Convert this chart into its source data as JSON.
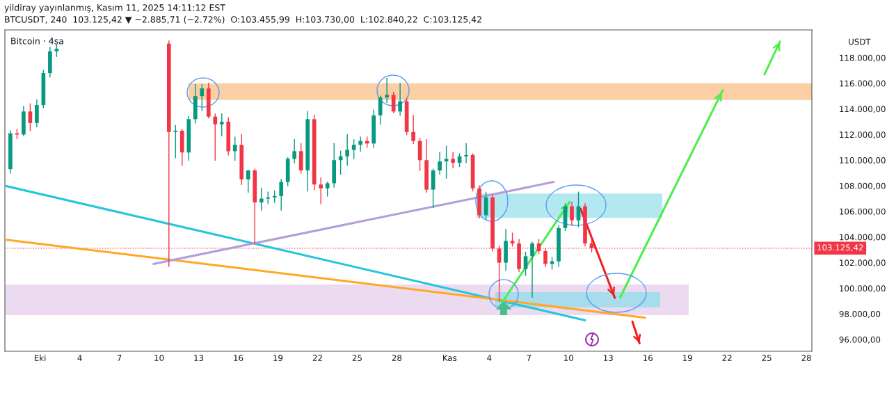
{
  "chart_data": {
    "type": "candlestick",
    "title": "yildiray yayınlanmış, Kasım 11, 2025 14:11:12 EST",
    "subtitle": "BTCUSDT, 240  103.125,42 ▼ −2.885,71 (−2.72%)  O:103.455,99  H:103.730,00  L:102.840,22  C:103.125,42",
    "ylabel": "USDT",
    "annotations": [
      "Bitcoin · 4sa"
    ],
    "x": [
      "2025-09-28T18:00",
      "2025-09-29T06:00",
      "2025-09-29T18:00",
      "2025-09-30T06:00",
      "2025-09-30T18:00",
      "2025-10-01T06:00",
      "2025-10-01T18:00",
      "2025-10-02T06:00",
      "2025-10-10T18:00",
      "2025-10-11T06:00",
      "2025-10-11T18:00",
      "2025-10-12T06:00",
      "2025-10-12T18:00",
      "2025-10-13T06:00",
      "2025-10-13T18:00",
      "2025-10-14T06:00",
      "2025-10-14T18:00",
      "2025-10-15T06:00",
      "2025-10-15T18:00",
      "2025-10-16T06:00",
      "2025-10-16T18:00",
      "2025-10-17T06:00",
      "2025-10-17T18:00",
      "2025-10-18T06:00",
      "2025-10-18T18:00",
      "2025-10-19T06:00",
      "2025-10-19T18:00",
      "2025-10-20T06:00",
      "2025-10-20T18:00",
      "2025-10-21T06:00",
      "2025-10-21T18:00",
      "2025-10-22T06:00",
      "2025-10-22T18:00",
      "2025-10-23T06:00",
      "2025-10-23T18:00",
      "2025-10-24T06:00",
      "2025-10-24T18:00",
      "2025-10-25T06:00",
      "2025-10-25T18:00",
      "2025-10-26T06:00",
      "2025-10-26T18:00",
      "2025-10-27T06:00",
      "2025-10-27T18:00",
      "2025-10-28T06:00",
      "2025-10-28T18:00",
      "2025-10-29T06:00",
      "2025-10-29T18:00",
      "2025-10-30T06:00",
      "2025-10-30T18:00",
      "2025-10-31T06:00",
      "2025-10-31T18:00",
      "2025-11-01T06:00",
      "2025-11-01T18:00",
      "2025-11-02T06:00",
      "2025-11-02T18:00",
      "2025-11-03T06:00",
      "2025-11-03T18:00",
      "2025-11-04T06:00",
      "2025-11-04T18:00",
      "2025-11-05T06:00",
      "2025-11-05T18:00",
      "2025-11-06T06:00",
      "2025-11-06T18:00",
      "2025-11-07T06:00",
      "2025-11-07T18:00",
      "2025-11-08T06:00",
      "2025-11-08T18:00",
      "2025-11-09T06:00",
      "2025-11-09T18:00",
      "2025-11-10T06:00",
      "2025-11-10T18:00",
      "2025-11-11T06:00",
      "2025-11-11T18:00"
    ],
    "ohlc": [
      [
        109300,
        112300,
        109000,
        112100
      ],
      [
        112100,
        112400,
        111700,
        112000
      ],
      [
        112000,
        114200,
        111900,
        113800
      ],
      [
        113800,
        114400,
        112300,
        112900
      ],
      [
        112900,
        114700,
        112600,
        114300
      ],
      [
        114300,
        117000,
        114100,
        116800
      ],
      [
        116800,
        118800,
        116500,
        118500
      ],
      [
        118500,
        119000,
        118100,
        118700
      ],
      [
        119100,
        119300,
        101700,
        112200
      ],
      [
        112200,
        112700,
        110200,
        112300
      ],
      [
        112300,
        112400,
        109600,
        110600
      ],
      [
        110600,
        113400,
        110000,
        113200
      ],
      [
        113200,
        115900,
        112900,
        115000
      ],
      [
        115000,
        115900,
        113900,
        115600
      ],
      [
        115600,
        116000,
        113300,
        113400
      ],
      [
        113400,
        113600,
        110000,
        112800
      ],
      [
        112800,
        113600,
        111900,
        113000
      ],
      [
        113000,
        113300,
        110400,
        110700
      ],
      [
        110700,
        111800,
        110000,
        111200
      ],
      [
        111200,
        112000,
        108100,
        108500
      ],
      [
        108500,
        109200,
        107500,
        109200
      ],
      [
        109200,
        109300,
        103500,
        106700
      ],
      [
        106700,
        107800,
        106100,
        107000
      ],
      [
        107000,
        107500,
        106600,
        107100
      ],
      [
        107100,
        107600,
        106700,
        107200
      ],
      [
        107200,
        108500,
        106100,
        108300
      ],
      [
        108300,
        110200,
        108000,
        110100
      ],
      [
        110100,
        111600,
        109800,
        110700
      ],
      [
        110700,
        111300,
        109000,
        109200
      ],
      [
        109200,
        113800,
        107600,
        113200
      ],
      [
        113200,
        113500,
        107700,
        108100
      ],
      [
        108100,
        108600,
        106600,
        107800
      ],
      [
        107800,
        108300,
        107200,
        108200
      ],
      [
        108200,
        111300,
        107900,
        110000
      ],
      [
        110000,
        110700,
        108900,
        110300
      ],
      [
        110300,
        112000,
        109600,
        110800
      ],
      [
        110800,
        111600,
        110100,
        111200
      ],
      [
        111200,
        111800,
        110700,
        111500
      ],
      [
        111500,
        111800,
        111000,
        111300
      ],
      [
        111300,
        113900,
        111000,
        113500
      ],
      [
        113500,
        115000,
        112800,
        114900
      ],
      [
        114900,
        116400,
        114500,
        115100
      ],
      [
        115100,
        115300,
        113700,
        113800
      ],
      [
        113800,
        116000,
        113500,
        114600
      ],
      [
        114600,
        114800,
        112000,
        112200
      ],
      [
        112200,
        113500,
        111300,
        111500
      ],
      [
        111500,
        111700,
        109200,
        110000
      ],
      [
        110000,
        111600,
        107500,
        107700
      ],
      [
        107700,
        109300,
        106300,
        109200
      ],
      [
        109200,
        110600,
        108900,
        109900
      ],
      [
        109900,
        111100,
        108600,
        110100
      ],
      [
        110100,
        110600,
        109400,
        109800
      ],
      [
        109800,
        110500,
        109500,
        110300
      ],
      [
        110300,
        111300,
        109800,
        110400
      ],
      [
        110400,
        110500,
        107600,
        107800
      ],
      [
        107800,
        108000,
        105500,
        105700
      ],
      [
        105700,
        107500,
        105400,
        107100
      ],
      [
        107100,
        107300,
        102900,
        103100
      ],
      [
        103100,
        103300,
        99000,
        102000
      ],
      [
        102000,
        104600,
        101400,
        103700
      ],
      [
        103700,
        104300,
        103300,
        103500
      ],
      [
        103500,
        103800,
        101300,
        101500
      ],
      [
        101500,
        102800,
        101000,
        102500
      ],
      [
        102500,
        103600,
        99300,
        103500
      ],
      [
        103500,
        103800,
        102700,
        102900
      ],
      [
        102900,
        103100,
        101700,
        101900
      ],
      [
        101900,
        102400,
        101500,
        102100
      ],
      [
        102100,
        104900,
        101700,
        104700
      ],
      [
        104700,
        106600,
        104500,
        106400
      ],
      [
        106400,
        106700,
        104900,
        105300
      ],
      [
        105300,
        107500,
        104800,
        106400
      ],
      [
        106400,
        106600,
        103300,
        103500
      ],
      [
        103500,
        103730,
        102840,
        103125
      ]
    ],
    "colors": [
      "#089981",
      "#f23645",
      "#089981",
      "#f23645",
      "#089981",
      "#089981",
      "#089981",
      "#089981",
      "#f23645",
      "#089981",
      "#f23645",
      "#089981",
      "#089981",
      "#089981",
      "#f23645",
      "#f23645",
      "#089981",
      "#f23645",
      "#089981",
      "#f23645",
      "#089981",
      "#f23645",
      "#089981",
      "#089981",
      "#089981",
      "#089981",
      "#089981",
      "#089981",
      "#f23645",
      "#089981",
      "#f23645",
      "#f23645",
      "#089981",
      "#089981",
      "#089981",
      "#089981",
      "#089981",
      "#089981",
      "#f23645",
      "#089981",
      "#089981",
      "#089981",
      "#f23645",
      "#089981",
      "#f23645",
      "#f23645",
      "#f23645",
      "#f23645",
      "#089981",
      "#089981",
      "#089981",
      "#f23645",
      "#089981",
      "#089981",
      "#f23645",
      "#f23645",
      "#089981",
      "#f23645",
      "#f23645",
      "#089981",
      "#f23645",
      "#f23645",
      "#089981",
      "#089981",
      "#f23645",
      "#f23645",
      "#089981",
      "#089981",
      "#089981",
      "#f23645",
      "#089981",
      "#f23645",
      "#f23645"
    ],
    "series": [
      {
        "type": "line",
        "color": "#26c6da",
        "x": [
          "2025-09-28T08:00",
          "2025-11-11T06:00"
        ],
        "values": [
          108000,
          97500
        ]
      },
      {
        "type": "line",
        "color": "#ffa726",
        "x": [
          "2025-09-28T08:00",
          "2025-11-15T19:00"
        ],
        "values": [
          103800,
          97700
        ]
      },
      {
        "type": "line",
        "color": "#b39ddb",
        "x": [
          "2025-10-09T14:00",
          "2025-11-08T21:00"
        ],
        "values": [
          101900,
          108300
        ]
      },
      {
        "type": "line",
        "color": "#4cee4c",
        "x": [
          "2025-11-05T01:00",
          "2025-11-10T02:00"
        ],
        "values": [
          99000,
          106750
        ]
      },
      {
        "type": "line",
        "color": "#f01e1e",
        "x": [
          "2025-11-10T22:00",
          "2025-11-13T12:00"
        ],
        "values": [
          106200,
          99250
        ]
      },
      {
        "type": "line",
        "color": "#4cee4c",
        "x": [
          "2025-11-13T22:00",
          "2025-11-21T16:00"
        ],
        "values": [
          99300,
          115450
        ]
      },
      {
        "type": "line",
        "color": "#4cee4c",
        "x": [
          "2025-11-24T20:00",
          "2025-11-26T00:00"
        ],
        "values": [
          116700,
          119250
        ]
      },
      {
        "type": "line",
        "color": "#f01e1e",
        "x": [
          "2025-11-14T20:00",
          "2025-11-15T09:00"
        ],
        "values": [
          97400,
          95700
        ]
      }
    ],
    "bands": [
      {
        "axis": "y",
        "from": 114700,
        "to": 116000,
        "color": "#f9cfa3"
      },
      {
        "axis": "y",
        "from": 97900,
        "to": 100300,
        "color": "#ecdaf0"
      },
      {
        "axis": "y",
        "from": 105500,
        "to": 107400,
        "color": "#b3e8f0"
      },
      {
        "axis": "y",
        "from": 98500,
        "to": 99700,
        "color": "#a6dcec"
      }
    ],
    "ref_lines": [
      {
        "axis": "y",
        "value": 103125.42,
        "label": "103.125,42",
        "color": "#f23645",
        "line_style": "dotted"
      }
    ],
    "xlim": [
      "2025-09-28T08:00",
      "2025-11-28T10:00"
    ],
    "xticks": [
      {
        "value": "2025-10-01",
        "label": "Eki"
      },
      {
        "value": "2025-10-04",
        "label": "4"
      },
      {
        "value": "2025-10-07",
        "label": "7"
      },
      {
        "value": "2025-10-10",
        "label": "10"
      },
      {
        "value": "2025-10-13",
        "label": "13"
      },
      {
        "value": "2025-10-16",
        "label": "16"
      },
      {
        "value": "2025-10-19",
        "label": "19"
      },
      {
        "value": "2025-10-22",
        "label": "22"
      },
      {
        "value": "2025-10-25",
        "label": "25"
      },
      {
        "value": "2025-10-28",
        "label": "28"
      },
      {
        "value": "2025-11-01",
        "label": "Kas"
      },
      {
        "value": "2025-11-04",
        "label": "4"
      },
      {
        "value": "2025-11-07",
        "label": "7"
      },
      {
        "value": "2025-11-10",
        "label": "10"
      },
      {
        "value": "2025-11-13",
        "label": "13"
      },
      {
        "value": "2025-11-16",
        "label": "16"
      },
      {
        "value": "2025-11-19",
        "label": "19"
      },
      {
        "value": "2025-11-22",
        "label": "22"
      },
      {
        "value": "2025-11-25",
        "label": "25"
      },
      {
        "value": "2025-11-28",
        "label": "28"
      }
    ],
    "ylim": [
      95080,
      120170
    ],
    "yticks": [
      {
        "value": 96000,
        "label": "96.000,00"
      },
      {
        "value": 98000,
        "label": "98.000,00"
      },
      {
        "value": 100000,
        "label": "100.000,00"
      },
      {
        "value": 102000,
        "label": "102.000,00"
      },
      {
        "value": 104000,
        "label": "104.000,00"
      },
      {
        "value": 106000,
        "label": "106.000,00"
      },
      {
        "value": 108000,
        "label": "108.000,00"
      },
      {
        "value": 110000,
        "label": "110.000,00"
      },
      {
        "value": 112000,
        "label": "112.000,00"
      },
      {
        "value": 114000,
        "label": "114.000,00"
      },
      {
        "value": 116000,
        "label": "116.000,00"
      },
      {
        "value": 118000,
        "label": "118.000,00"
      }
    ],
    "grid": false,
    "legend": false
  }
}
